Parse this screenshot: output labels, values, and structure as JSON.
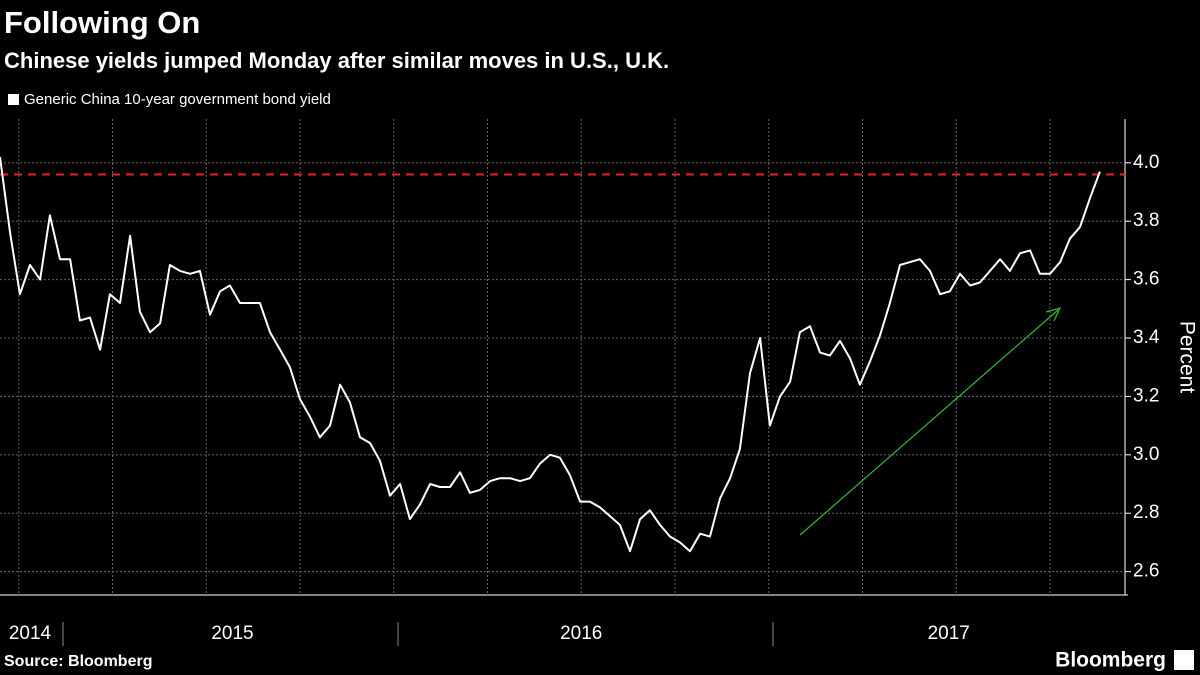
{
  "chart_data": {
    "type": "line",
    "title": "Following On",
    "subtitle": "Chinese yields jumped Monday after similar moves in U.S., U.K.",
    "y_label": "Percent",
    "source": "Source: Bloomberg",
    "brand": "Bloomberg",
    "xlim": [
      2014.45,
      2017.45
    ],
    "ylim": [
      2.52,
      4.15
    ],
    "yticks": [
      2.6,
      2.8,
      {
        "value": 3,
        "label": "3.0"
      },
      3.2,
      3.4,
      3.6,
      3.8,
      {
        "value": 4,
        "label": "4.0"
      }
    ],
    "xticks": [
      {
        "value": 2014.53,
        "label": "2014"
      },
      {
        "value": 2015.07,
        "label": "2015"
      },
      {
        "value": 2016.0,
        "label": "2016"
      },
      {
        "value": 2016.98,
        "label": "2017"
      }
    ],
    "xgrid": [
      2014.5,
      2014.75,
      2015,
      2015.25,
      2015.5,
      2015.75,
      2016,
      2016.25,
      2016.5,
      2016.75,
      2017,
      2017.25
    ],
    "grid": true,
    "reference_value": 3.96,
    "reference_color": "#e8202a",
    "x": [
      2014.45,
      2014.477,
      2014.503,
      2014.53,
      2014.557,
      2014.583,
      2014.61,
      2014.637,
      2014.663,
      2014.69,
      2014.717,
      2014.743,
      2014.77,
      2014.797,
      2014.823,
      2014.85,
      2014.877,
      2014.903,
      2014.93,
      2014.957,
      2014.983,
      2015.01,
      2015.037,
      2015.063,
      2015.09,
      2015.117,
      2015.143,
      2015.17,
      2015.197,
      2015.223,
      2015.25,
      2015.277,
      2015.303,
      2015.33,
      2015.357,
      2015.383,
      2015.41,
      2015.437,
      2015.463,
      2015.49,
      2015.517,
      2015.543,
      2015.57,
      2015.597,
      2015.623,
      2015.65,
      2015.677,
      2015.703,
      2015.73,
      2015.757,
      2015.783,
      2015.81,
      2015.837,
      2015.863,
      2015.89,
      2015.917,
      2015.943,
      2015.97,
      2015.997,
      2016.023,
      2016.05,
      2016.077,
      2016.103,
      2016.13,
      2016.157,
      2016.183,
      2016.21,
      2016.237,
      2016.263,
      2016.29,
      2016.317,
      2016.343,
      2016.37,
      2016.397,
      2016.423,
      2016.45,
      2016.477,
      2016.503,
      2016.53,
      2016.557,
      2016.583,
      2016.61,
      2016.637,
      2016.663,
      2016.69,
      2016.717,
      2016.743,
      2016.77,
      2016.797,
      2016.823,
      2016.85,
      2016.877,
      2016.903,
      2016.93,
      2016.957,
      2016.983,
      2017.01,
      2017.037,
      2017.063,
      2017.09,
      2017.117,
      2017.143,
      2017.17,
      2017.197,
      2017.223,
      2017.25,
      2017.277,
      2017.303,
      2017.33,
      2017.357,
      2017.383
    ],
    "series": [
      {
        "name": "Generic China 10-year government bond yield",
        "color": "#ffffff",
        "values": [
          4.02,
          3.76,
          3.55,
          3.65,
          3.6,
          3.82,
          3.67,
          3.67,
          3.46,
          3.47,
          3.36,
          3.55,
          3.52,
          3.75,
          3.49,
          3.42,
          3.45,
          3.65,
          3.63,
          3.62,
          3.63,
          3.48,
          3.56,
          3.58,
          3.52,
          3.52,
          3.52,
          3.42,
          3.36,
          3.3,
          3.19,
          3.13,
          3.06,
          3.1,
          3.24,
          3.18,
          3.06,
          3.04,
          2.98,
          2.86,
          2.9,
          2.78,
          2.83,
          2.9,
          2.89,
          2.89,
          2.94,
          2.87,
          2.88,
          2.91,
          2.92,
          2.92,
          2.91,
          2.92,
          2.97,
          3.0,
          2.99,
          2.93,
          2.84,
          2.84,
          2.82,
          2.79,
          2.76,
          2.67,
          2.78,
          2.81,
          2.76,
          2.72,
          2.7,
          2.67,
          2.73,
          2.72,
          2.85,
          2.92,
          3.02,
          3.28,
          3.4,
          3.1,
          3.2,
          3.25,
          3.42,
          3.44,
          3.35,
          3.34,
          3.39,
          3.33,
          3.24,
          3.32,
          3.41,
          3.52,
          3.65,
          3.66,
          3.67,
          3.63,
          3.55,
          3.56,
          3.62,
          3.58,
          3.59,
          3.63,
          3.67,
          3.63,
          3.69,
          3.7,
          3.62,
          3.62,
          3.66,
          3.74,
          3.78,
          3.88,
          3.97
        ]
      }
    ]
  }
}
